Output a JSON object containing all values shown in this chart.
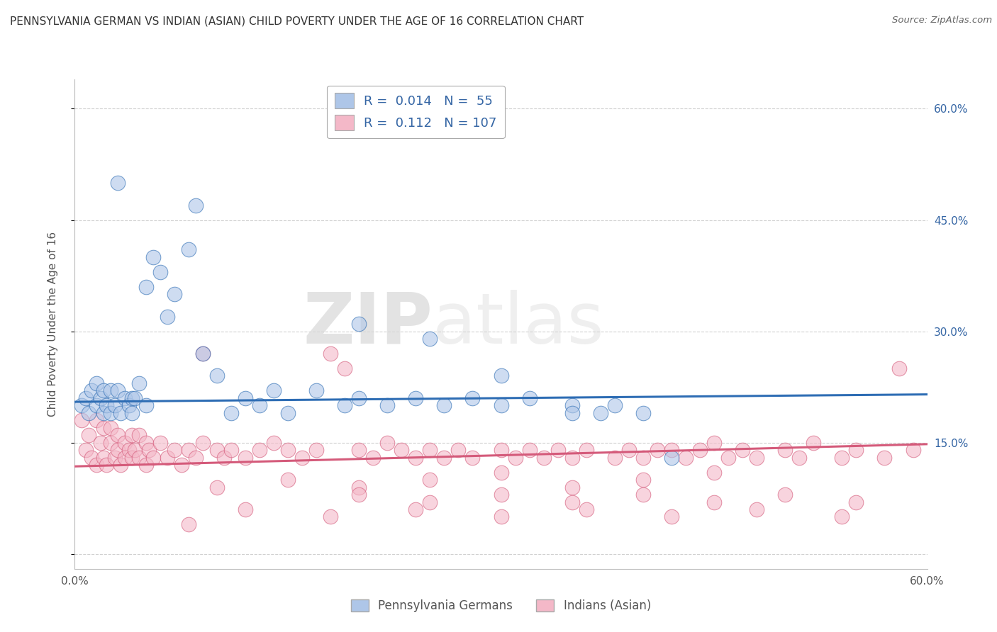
{
  "title": "PENNSYLVANIA GERMAN VS INDIAN (ASIAN) CHILD POVERTY UNDER THE AGE OF 16 CORRELATION CHART",
  "source": "Source: ZipAtlas.com",
  "ylabel": "Child Poverty Under the Age of 16",
  "xmin": 0.0,
  "xmax": 0.6,
  "ymin": -0.02,
  "ymax": 0.64,
  "yticks": [
    0.0,
    0.15,
    0.3,
    0.45,
    0.6
  ],
  "ytick_labels": [
    "",
    "15.0%",
    "30.0%",
    "45.0%",
    "60.0%"
  ],
  "R_blue": 0.014,
  "N_blue": 55,
  "R_pink": 0.112,
  "N_pink": 107,
  "blue_color": "#aec6e8",
  "blue_line_color": "#2e6db4",
  "pink_color": "#f4b8c8",
  "pink_line_color": "#d45a7a",
  "legend_label_blue": "Pennsylvania Germans",
  "legend_label_pink": "Indians (Asian)",
  "title_color": "#333333",
  "source_color": "#666666",
  "axis_label_color": "#555555",
  "tick_color": "#3465a4",
  "grid_color": "#d0d0d0",
  "blue_scatter_x": [
    0.005,
    0.008,
    0.01,
    0.012,
    0.015,
    0.015,
    0.018,
    0.02,
    0.02,
    0.022,
    0.025,
    0.025,
    0.028,
    0.03,
    0.03,
    0.032,
    0.035,
    0.038,
    0.04,
    0.04,
    0.042,
    0.045,
    0.05,
    0.05,
    0.055,
    0.06,
    0.065,
    0.07,
    0.08,
    0.085,
    0.09,
    0.1,
    0.11,
    0.12,
    0.13,
    0.14,
    0.15,
    0.17,
    0.19,
    0.2,
    0.22,
    0.24,
    0.26,
    0.28,
    0.3,
    0.32,
    0.35,
    0.37,
    0.38,
    0.4,
    0.2,
    0.25,
    0.3,
    0.35,
    0.42
  ],
  "blue_scatter_y": [
    0.2,
    0.21,
    0.19,
    0.22,
    0.2,
    0.23,
    0.21,
    0.19,
    0.22,
    0.2,
    0.19,
    0.22,
    0.2,
    0.5,
    0.22,
    0.19,
    0.21,
    0.2,
    0.21,
    0.19,
    0.21,
    0.23,
    0.2,
    0.36,
    0.4,
    0.38,
    0.32,
    0.35,
    0.41,
    0.47,
    0.27,
    0.24,
    0.19,
    0.21,
    0.2,
    0.22,
    0.19,
    0.22,
    0.2,
    0.21,
    0.2,
    0.21,
    0.2,
    0.21,
    0.2,
    0.21,
    0.2,
    0.19,
    0.2,
    0.19,
    0.31,
    0.29,
    0.24,
    0.19,
    0.13
  ],
  "pink_scatter_x": [
    0.005,
    0.008,
    0.01,
    0.012,
    0.015,
    0.015,
    0.018,
    0.02,
    0.02,
    0.022,
    0.025,
    0.025,
    0.028,
    0.03,
    0.03,
    0.032,
    0.035,
    0.035,
    0.038,
    0.04,
    0.04,
    0.042,
    0.045,
    0.045,
    0.05,
    0.05,
    0.052,
    0.055,
    0.06,
    0.065,
    0.07,
    0.075,
    0.08,
    0.085,
    0.09,
    0.09,
    0.1,
    0.105,
    0.11,
    0.12,
    0.13,
    0.14,
    0.15,
    0.16,
    0.17,
    0.18,
    0.19,
    0.2,
    0.21,
    0.22,
    0.23,
    0.24,
    0.25,
    0.26,
    0.27,
    0.28,
    0.3,
    0.31,
    0.32,
    0.33,
    0.34,
    0.35,
    0.36,
    0.38,
    0.39,
    0.4,
    0.41,
    0.42,
    0.43,
    0.44,
    0.45,
    0.46,
    0.47,
    0.48,
    0.5,
    0.51,
    0.52,
    0.54,
    0.55,
    0.57,
    0.58,
    0.59,
    0.2,
    0.25,
    0.3,
    0.35,
    0.4,
    0.45,
    0.1,
    0.15,
    0.2,
    0.25,
    0.3,
    0.35,
    0.4,
    0.45,
    0.5,
    0.55,
    0.12,
    0.18,
    0.24,
    0.3,
    0.36,
    0.42,
    0.48,
    0.54,
    0.08
  ],
  "pink_scatter_y": [
    0.18,
    0.14,
    0.16,
    0.13,
    0.18,
    0.12,
    0.15,
    0.13,
    0.17,
    0.12,
    0.15,
    0.17,
    0.13,
    0.14,
    0.16,
    0.12,
    0.15,
    0.13,
    0.14,
    0.13,
    0.16,
    0.14,
    0.13,
    0.16,
    0.12,
    0.15,
    0.14,
    0.13,
    0.15,
    0.13,
    0.14,
    0.12,
    0.14,
    0.13,
    0.15,
    0.27,
    0.14,
    0.13,
    0.14,
    0.13,
    0.14,
    0.15,
    0.14,
    0.13,
    0.14,
    0.27,
    0.25,
    0.14,
    0.13,
    0.15,
    0.14,
    0.13,
    0.14,
    0.13,
    0.14,
    0.13,
    0.14,
    0.13,
    0.14,
    0.13,
    0.14,
    0.13,
    0.14,
    0.13,
    0.14,
    0.13,
    0.14,
    0.14,
    0.13,
    0.14,
    0.15,
    0.13,
    0.14,
    0.13,
    0.14,
    0.13,
    0.15,
    0.13,
    0.14,
    0.13,
    0.25,
    0.14,
    0.09,
    0.1,
    0.11,
    0.09,
    0.1,
    0.11,
    0.09,
    0.1,
    0.08,
    0.07,
    0.08,
    0.07,
    0.08,
    0.07,
    0.08,
    0.07,
    0.06,
    0.05,
    0.06,
    0.05,
    0.06,
    0.05,
    0.06,
    0.05,
    0.04
  ],
  "blue_trend_y_start": 0.205,
  "blue_trend_y_end": 0.215,
  "pink_trend_y_start": 0.118,
  "pink_trend_y_end": 0.148,
  "watermark_zip": "ZIP",
  "watermark_atlas": "atlas",
  "background_color": "#ffffff"
}
